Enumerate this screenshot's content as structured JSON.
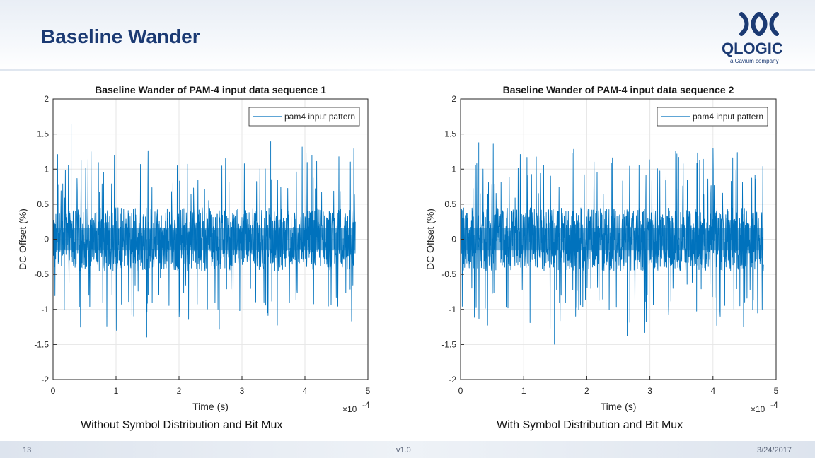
{
  "slide": {
    "title": "Baseline Wander",
    "page_number": "13",
    "version": "v1.0",
    "date": "3/24/2017"
  },
  "logo": {
    "name": "QLOGIC",
    "tagline": "a Cavium company"
  },
  "captions": {
    "left": "Without Symbol Distribution and Bit Mux",
    "right": "With Symbol Distribution and Bit Mux"
  },
  "chart_data": [
    {
      "type": "line",
      "title": "Baseline Wander of PAM-4 input data sequence 1",
      "xlabel": "Time (s)",
      "ylabel": "DC Offset (%)",
      "x_multiplier": "×10",
      "x_exponent": "-4",
      "xlim": [
        0,
        5
      ],
      "ylim": [
        -2,
        2
      ],
      "xticks": [
        "0",
        "1",
        "2",
        "3",
        "4",
        "5"
      ],
      "yticks": [
        "-2",
        "-1.5",
        "-1",
        "-0.5",
        "0",
        "0.5",
        "1",
        "1.5",
        "2"
      ],
      "grid": true,
      "legend_position": "top-right",
      "series": [
        {
          "name": "pam4 input pattern",
          "color": "#0072bd",
          "x_end": 4.8,
          "envelope": {
            "core": 0.45,
            "spike_max": 1.64,
            "spike_min": -1.4
          }
        }
      ]
    },
    {
      "type": "line",
      "title": "Baseline Wander of PAM-4 input data sequence 2",
      "xlabel": "Time (s)",
      "ylabel": "DC Offset (%)",
      "x_multiplier": "×10",
      "x_exponent": "-4",
      "xlim": [
        0,
        5
      ],
      "ylim": [
        -2,
        2
      ],
      "xticks": [
        "0",
        "1",
        "2",
        "3",
        "4",
        "5"
      ],
      "yticks": [
        "-2",
        "-1.5",
        "-1",
        "-0.5",
        "0",
        "0.5",
        "1",
        "1.5",
        "2"
      ],
      "grid": true,
      "legend_position": "top-right",
      "series": [
        {
          "name": "pam4 input pattern",
          "color": "#0072bd",
          "x_end": 4.8,
          "envelope": {
            "core": 0.45,
            "spike_max": 1.38,
            "spike_min": -1.5
          }
        }
      ]
    }
  ]
}
